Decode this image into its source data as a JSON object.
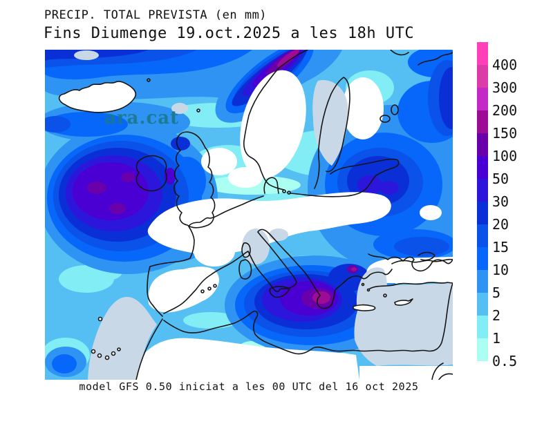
{
  "header": {
    "title": "PRECIP. TOTAL PREVISTA (en mm)",
    "subtitle": "Fins Diumenge 19.oct.2025 a les 18h UTC"
  },
  "watermark": {
    "text": "ara.cat",
    "color": "#1A7A8C"
  },
  "footer": {
    "caption": "model GFS 0.50 iniciat a les 00 UTC del 16 oct 2025"
  },
  "legend": {
    "entries": [
      {
        "label": "400",
        "color": "#FF40B8"
      },
      {
        "label": "300",
        "color": "#DC3CA8"
      },
      {
        "label": "200",
        "color": "#C428C6"
      },
      {
        "label": "150",
        "color": "#9C0C94"
      },
      {
        "label": "100",
        "color": "#6A00AA"
      },
      {
        "label": "50",
        "color": "#4A00D2"
      },
      {
        "label": "30",
        "color": "#2C16DC"
      },
      {
        "label": "20",
        "color": "#0A2FD6"
      },
      {
        "label": "15",
        "color": "#0A52E8"
      },
      {
        "label": "10",
        "color": "#0667FA"
      },
      {
        "label": "5",
        "color": "#2E93F2"
      },
      {
        "label": "2",
        "color": "#55BEF2"
      },
      {
        "label": "1",
        "color": "#82EDF5"
      },
      {
        "label": "0.5",
        "color": "#AAFFF2"
      }
    ]
  },
  "map_colors": {
    "sea_no_precip": "#C9D8E6",
    "land_no_precip": "#FFFFFF",
    "coastline": "#151515"
  }
}
